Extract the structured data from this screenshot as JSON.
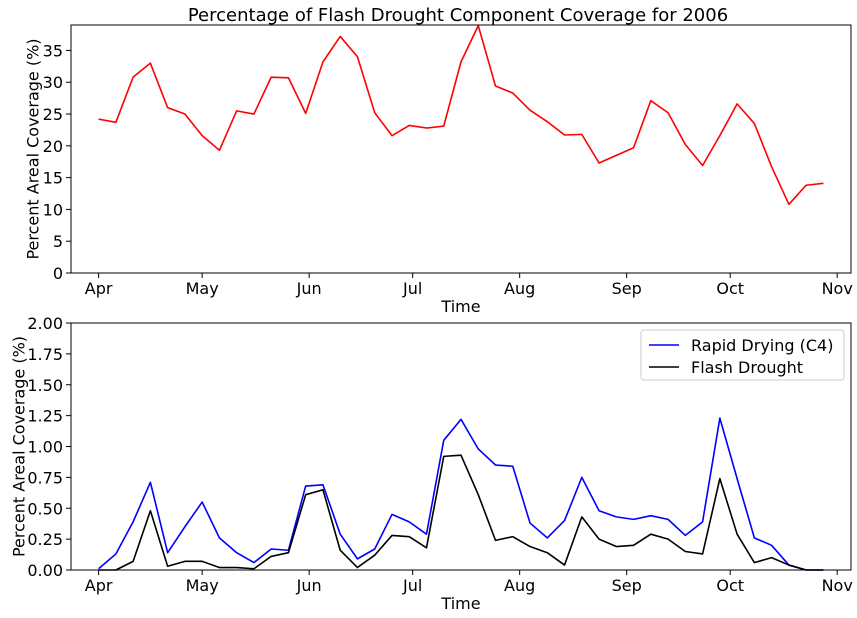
{
  "chart_data": [
    {
      "type": "line",
      "title": "Percentage of Flash Drought Component Coverage for 2006",
      "xlabel": "Time",
      "ylabel": "Percent Areal Coverage (%)",
      "xlim": [
        "2006-03-24",
        "2006-11-05"
      ],
      "ylim": [
        0,
        39
      ],
      "yticks": [
        0,
        5,
        10,
        15,
        20,
        25,
        30,
        35
      ],
      "xticks": [
        {
          "date": "2006-04-01",
          "label": "Apr"
        },
        {
          "date": "2006-05-01",
          "label": "May"
        },
        {
          "date": "2006-06-01",
          "label": "Jun"
        },
        {
          "date": "2006-07-01",
          "label": "Jul"
        },
        {
          "date": "2006-08-01",
          "label": "Aug"
        },
        {
          "date": "2006-09-01",
          "label": "Sep"
        },
        {
          "date": "2006-10-01",
          "label": "Oct"
        },
        {
          "date": "2006-11-01",
          "label": "Nov"
        }
      ],
      "grid": false,
      "x": [
        "2006-04-01",
        "2006-04-06",
        "2006-04-11",
        "2006-04-16",
        "2006-04-21",
        "2006-04-26",
        "2006-05-01",
        "2006-05-06",
        "2006-05-11",
        "2006-05-16",
        "2006-05-21",
        "2006-05-26",
        "2006-05-31",
        "2006-06-05",
        "2006-06-10",
        "2006-06-15",
        "2006-06-20",
        "2006-06-25",
        "2006-06-30",
        "2006-07-05",
        "2006-07-10",
        "2006-07-15",
        "2006-07-20",
        "2006-07-25",
        "2006-07-30",
        "2006-08-04",
        "2006-08-09",
        "2006-08-14",
        "2006-08-19",
        "2006-08-24",
        "2006-08-29",
        "2006-09-03",
        "2006-09-08",
        "2006-09-13",
        "2006-09-18",
        "2006-09-23",
        "2006-09-28",
        "2006-10-03",
        "2006-10-08",
        "2006-10-13",
        "2006-10-18",
        "2006-10-23",
        "2006-10-28"
      ],
      "series": [
        {
          "name": "",
          "color": "#ff0000",
          "values": [
            24.2,
            23.7,
            30.8,
            33.0,
            26.0,
            25.0,
            21.6,
            19.3,
            25.5,
            25.0,
            30.8,
            30.7,
            25.1,
            33.2,
            37.2,
            34.0,
            25.2,
            21.6,
            23.2,
            22.8,
            23.1,
            33.2,
            38.9,
            29.4,
            28.3,
            25.6,
            23.8,
            21.7,
            21.8,
            17.3,
            18.5,
            19.7,
            27.1,
            25.2,
            20.2,
            16.9,
            21.6,
            26.6,
            23.5,
            16.7,
            10.8,
            13.8,
            14.1
          ]
        }
      ]
    },
    {
      "type": "line",
      "title": "",
      "xlabel": "Time",
      "ylabel": "Percent Areal Coverage (%)",
      "xlim": [
        "2006-03-24",
        "2006-11-05"
      ],
      "ylim": [
        0,
        2.0
      ],
      "yticks": [
        "0.00",
        "0.25",
        "0.50",
        "0.75",
        "1.00",
        "1.25",
        "1.50",
        "1.75",
        "2.00"
      ],
      "xticks": [
        {
          "date": "2006-04-01",
          "label": "Apr"
        },
        {
          "date": "2006-05-01",
          "label": "May"
        },
        {
          "date": "2006-06-01",
          "label": "Jun"
        },
        {
          "date": "2006-07-01",
          "label": "Jul"
        },
        {
          "date": "2006-08-01",
          "label": "Aug"
        },
        {
          "date": "2006-09-01",
          "label": "Sep"
        },
        {
          "date": "2006-10-01",
          "label": "Oct"
        },
        {
          "date": "2006-11-01",
          "label": "Nov"
        }
      ],
      "grid": false,
      "legend": "top-right",
      "x": [
        "2006-04-01",
        "2006-04-06",
        "2006-04-11",
        "2006-04-16",
        "2006-04-21",
        "2006-04-26",
        "2006-05-01",
        "2006-05-06",
        "2006-05-11",
        "2006-05-16",
        "2006-05-21",
        "2006-05-26",
        "2006-05-31",
        "2006-06-05",
        "2006-06-10",
        "2006-06-15",
        "2006-06-20",
        "2006-06-25",
        "2006-06-30",
        "2006-07-05",
        "2006-07-10",
        "2006-07-15",
        "2006-07-20",
        "2006-07-25",
        "2006-07-30",
        "2006-08-04",
        "2006-08-09",
        "2006-08-14",
        "2006-08-19",
        "2006-08-24",
        "2006-08-29",
        "2006-09-03",
        "2006-09-08",
        "2006-09-13",
        "2006-09-18",
        "2006-09-23",
        "2006-09-28",
        "2006-10-03",
        "2006-10-08",
        "2006-10-13",
        "2006-10-18",
        "2006-10-23",
        "2006-10-28"
      ],
      "series": [
        {
          "name": "Rapid Drying (C4)",
          "color": "#0000ff",
          "values": [
            0.01,
            0.13,
            0.39,
            0.71,
            0.14,
            0.35,
            0.55,
            0.26,
            0.14,
            0.06,
            0.17,
            0.16,
            0.68,
            0.69,
            0.29,
            0.09,
            0.17,
            0.45,
            0.39,
            0.29,
            1.05,
            1.22,
            0.98,
            0.85,
            0.84,
            0.38,
            0.26,
            0.4,
            0.75,
            0.48,
            0.43,
            0.41,
            0.44,
            0.41,
            0.28,
            0.39,
            1.23,
            0.74,
            0.26,
            0.2,
            0.04,
            0.0,
            0.0
          ]
        },
        {
          "name": "Flash Drought",
          "color": "#000000",
          "values": [
            0.0,
            0.0,
            0.07,
            0.48,
            0.03,
            0.07,
            0.07,
            0.02,
            0.02,
            0.01,
            0.11,
            0.14,
            0.61,
            0.65,
            0.16,
            0.02,
            0.12,
            0.28,
            0.27,
            0.18,
            0.92,
            0.93,
            0.61,
            0.24,
            0.27,
            0.19,
            0.14,
            0.04,
            0.43,
            0.25,
            0.19,
            0.2,
            0.29,
            0.25,
            0.15,
            0.13,
            0.74,
            0.29,
            0.06,
            0.1,
            0.04,
            0.0,
            0.0
          ]
        }
      ]
    }
  ]
}
